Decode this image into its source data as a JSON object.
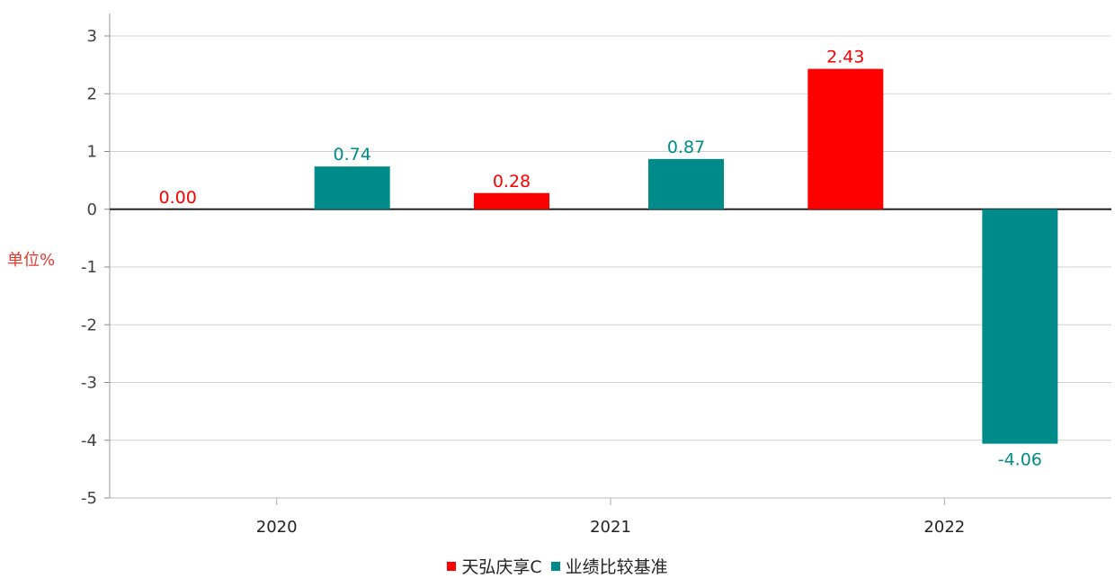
{
  "chart_data": {
    "type": "bar",
    "categories": [
      "2020",
      "2021",
      "2022"
    ],
    "series": [
      {
        "name": "天弘庆享C",
        "values": [
          0.0,
          0.28,
          2.43
        ],
        "labels": [
          "0.00",
          "0.28",
          "2.43"
        ],
        "color": "#ff0000"
      },
      {
        "name": "业绩比较基准",
        "values": [
          0.74,
          0.87,
          -4.06
        ],
        "labels": [
          "0.74",
          "0.87",
          "-4.06"
        ],
        "color": "#008b8b"
      }
    ],
    "ylabel": "单位%",
    "ylim": [
      -5,
      3
    ],
    "yticks": [
      "3",
      "2",
      "1",
      "0",
      "-1",
      "-2",
      "-3",
      "-4",
      "-5"
    ],
    "grid": true,
    "legend_position": "bottom"
  },
  "colors": {
    "axis_label": "#e03a2f",
    "grid": "#d0d0d0",
    "zero_line": "#222222"
  }
}
